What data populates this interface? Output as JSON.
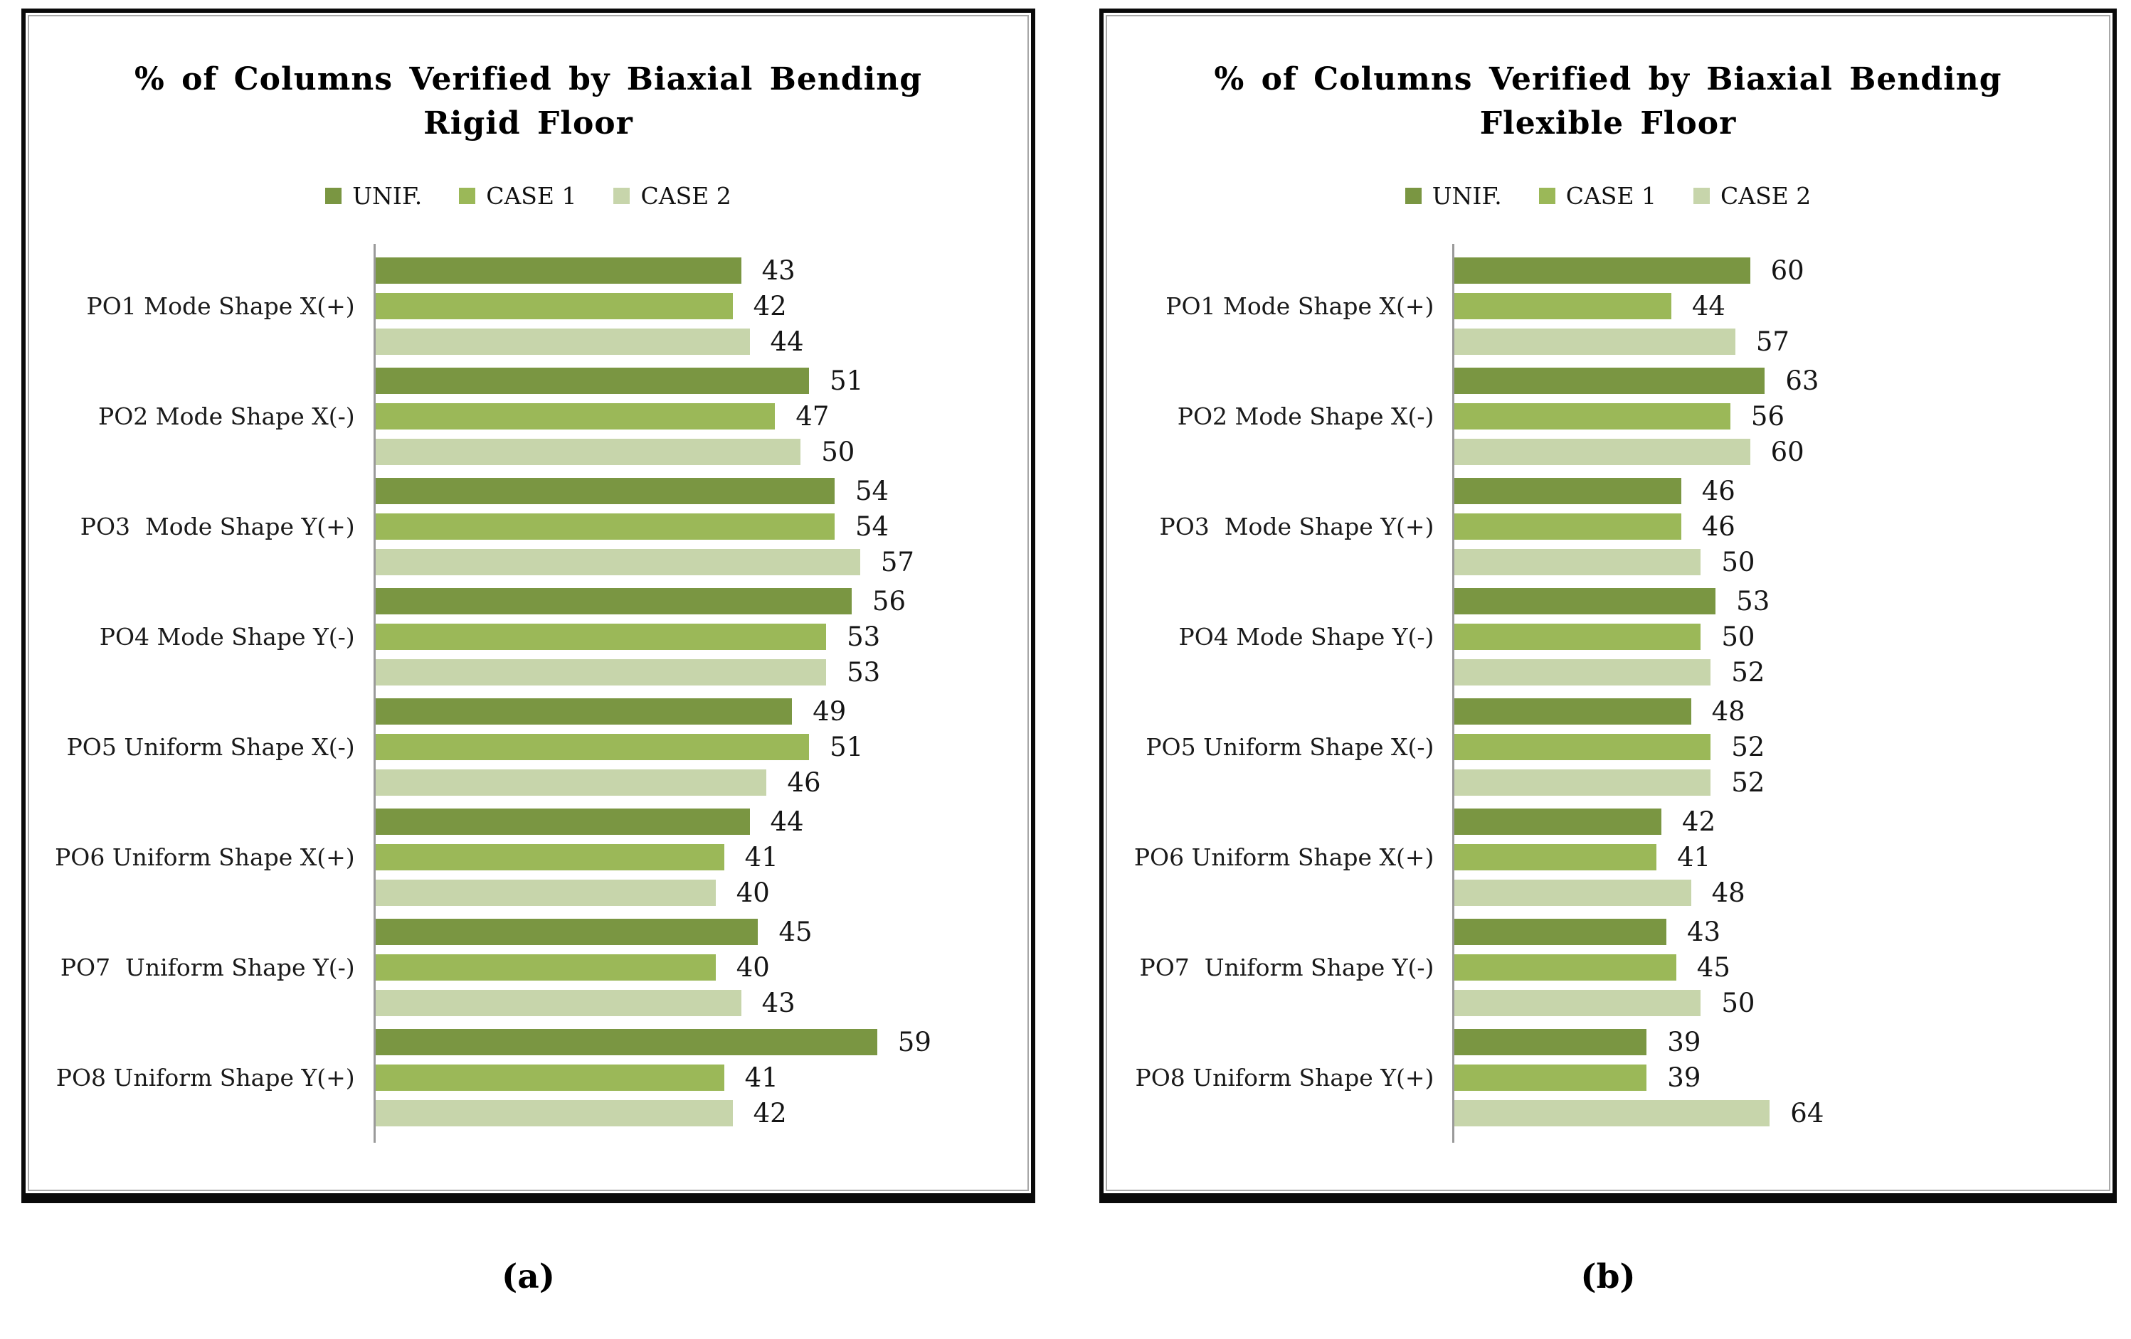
{
  "figure": {
    "caption_a": "(a)",
    "caption_b": "(b)"
  },
  "colors": {
    "series": [
      "#7A9642",
      "#9BB858",
      "#C7D5AB"
    ],
    "axis": "#9a9a9a",
    "panel_border": "#0A0A0A",
    "inner_border": "#A8A8A8",
    "text": "#1A1A1A",
    "background": "#FFFFFF"
  },
  "chart_data": [
    {
      "type": "bar",
      "orientation": "horizontal",
      "title_line1": "% of Columns Verified by Biaxial Bending",
      "title_line2": "Rigid Floor",
      "legend": [
        "UNIF.",
        "CASE 1",
        "CASE 2"
      ],
      "legend_position": "top",
      "grid": false,
      "data_labels": true,
      "xlim": [
        0,
        75
      ],
      "categories": [
        "PO1 Mode Shape X(+)",
        "PO2 Mode Shape X(-)",
        "PO3  Mode Shape Y(+)",
        "PO4 Mode Shape Y(-)",
        "PO5 Uniform Shape X(-)",
        "PO6 Uniform Shape X(+)",
        "PO7  Uniform Shape Y(-)",
        "PO8 Uniform Shape Y(+)"
      ],
      "series": [
        {
          "name": "UNIF.",
          "values": [
            43,
            51,
            54,
            56,
            49,
            44,
            45,
            59
          ]
        },
        {
          "name": "CASE 1",
          "values": [
            42,
            47,
            54,
            53,
            51,
            41,
            40,
            41
          ]
        },
        {
          "name": "CASE 2",
          "values": [
            44,
            50,
            57,
            53,
            46,
            40,
            43,
            42
          ]
        }
      ]
    },
    {
      "type": "bar",
      "orientation": "horizontal",
      "title_line1": "% of Columns Verified by Biaxial Bending",
      "title_line2": "Flexible Floor",
      "legend": [
        "UNIF.",
        "CASE 1",
        "CASE 2"
      ],
      "legend_position": "top",
      "grid": false,
      "data_labels": true,
      "xlim": [
        0,
        130
      ],
      "categories": [
        "PO1 Mode Shape X(+)",
        "PO2 Mode Shape X(-)",
        "PO3  Mode Shape Y(+)",
        "PO4 Mode Shape Y(-)",
        "PO5 Uniform Shape X(-)",
        "PO6 Uniform Shape X(+)",
        "PO7  Uniform Shape Y(-)",
        "PO8 Uniform Shape Y(+)"
      ],
      "series": [
        {
          "name": "UNIF.",
          "values": [
            60,
            63,
            46,
            53,
            48,
            42,
            43,
            39
          ]
        },
        {
          "name": "CASE 1",
          "values": [
            44,
            56,
            46,
            50,
            52,
            41,
            45,
            39
          ]
        },
        {
          "name": "CASE 2",
          "values": [
            57,
            60,
            50,
            52,
            52,
            48,
            50,
            64
          ]
        }
      ]
    }
  ]
}
